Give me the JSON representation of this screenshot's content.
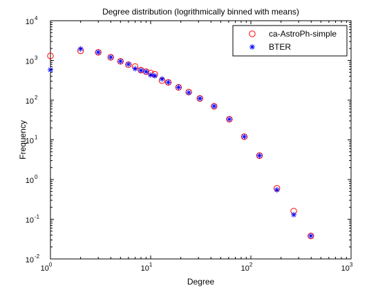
{
  "chart_data": {
    "type": "scatter",
    "title": "Degree distribution (logrithmically binned with means)",
    "xlabel": "Degree",
    "ylabel": "Frequency",
    "xscale": "log",
    "yscale": "log",
    "xlim": [
      1,
      1000
    ],
    "ylim": [
      0.01,
      10000
    ],
    "grid": false,
    "legend_position": "top-right",
    "x_ticks": [
      {
        "value": 1,
        "base": "10",
        "exp": "0"
      },
      {
        "value": 10,
        "base": "10",
        "exp": "1"
      },
      {
        "value": 100,
        "base": "10",
        "exp": "2"
      },
      {
        "value": 1000,
        "base": "10",
        "exp": "3"
      }
    ],
    "y_ticks": [
      {
        "value": 0.01,
        "base": "10",
        "exp": "-2"
      },
      {
        "value": 0.1,
        "base": "10",
        "exp": "-1"
      },
      {
        "value": 1,
        "base": "10",
        "exp": "0"
      },
      {
        "value": 10,
        "base": "10",
        "exp": "1"
      },
      {
        "value": 100,
        "base": "10",
        "exp": "2"
      },
      {
        "value": 1000,
        "base": "10",
        "exp": "3"
      },
      {
        "value": 10000,
        "base": "10",
        "exp": "4"
      }
    ],
    "series": [
      {
        "name": "ca-AstroPh-simple",
        "marker": "circle",
        "color": "#ff0000",
        "points": [
          [
            1,
            1300
          ],
          [
            2,
            1750
          ],
          [
            3,
            1600
          ],
          [
            4,
            1200
          ],
          [
            5,
            950
          ],
          [
            6,
            780
          ],
          [
            7,
            700
          ],
          [
            8,
            570
          ],
          [
            9,
            520
          ],
          [
            10,
            480
          ],
          [
            11,
            450
          ],
          [
            13,
            310
          ],
          [
            15,
            280
          ],
          [
            19,
            210
          ],
          [
            24,
            160
          ],
          [
            31,
            110
          ],
          [
            43,
            70
          ],
          [
            61,
            33
          ],
          [
            86,
            12
          ],
          [
            122,
            4.0
          ],
          [
            182,
            0.6
          ],
          [
            268,
            0.16
          ],
          [
            397,
            0.038
          ]
        ]
      },
      {
        "name": "BTER",
        "marker": "asterisk",
        "color": "#0000ff",
        "points": [
          [
            1,
            580
          ],
          [
            2,
            1950
          ],
          [
            3,
            1600
          ],
          [
            4,
            1200
          ],
          [
            5,
            950
          ],
          [
            6,
            800
          ],
          [
            7,
            620
          ],
          [
            8,
            560
          ],
          [
            9,
            520
          ],
          [
            10,
            430
          ],
          [
            11,
            410
          ],
          [
            13,
            340
          ],
          [
            15,
            280
          ],
          [
            19,
            210
          ],
          [
            24,
            155
          ],
          [
            31,
            110
          ],
          [
            43,
            70
          ],
          [
            61,
            33
          ],
          [
            86,
            12
          ],
          [
            122,
            4.0
          ],
          [
            182,
            0.55
          ],
          [
            268,
            0.13
          ],
          [
            397,
            0.038
          ]
        ]
      }
    ]
  }
}
